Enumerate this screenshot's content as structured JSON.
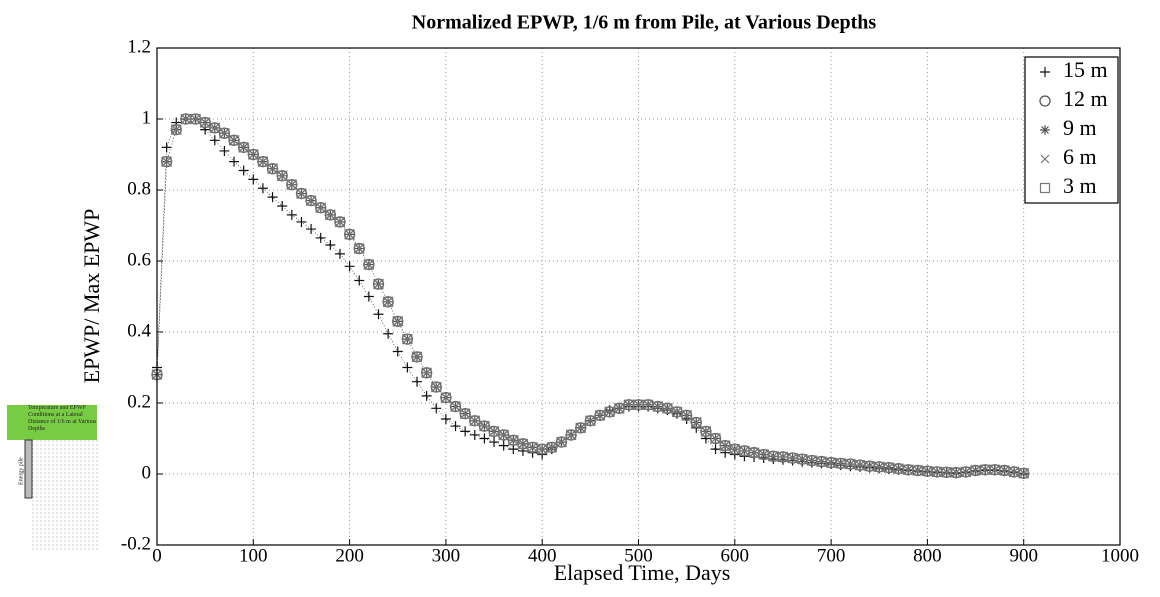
{
  "chart_data": {
    "type": "scatter",
    "title": "Normalized EPWP, 1/6 m from Pile, at Various Depths",
    "x_label": "Elapsed Time, Days",
    "y_label": "EPWP/ Max EPWP",
    "xlim": [
      0,
      1000
    ],
    "xticks": [
      0,
      100,
      200,
      300,
      400,
      500,
      600,
      700,
      800,
      900,
      1000
    ],
    "ylim": [
      -0.2,
      1.2
    ],
    "yticks": [
      -0.2,
      0,
      0.2,
      0.4,
      0.6,
      0.8,
      1,
      1.2
    ],
    "grid": true,
    "legend": "upper right",
    "x": [
      0,
      10,
      20,
      30,
      40,
      50,
      60,
      70,
      80,
      90,
      100,
      110,
      120,
      130,
      140,
      150,
      160,
      170,
      180,
      190,
      200,
      210,
      220,
      230,
      240,
      250,
      260,
      270,
      280,
      290,
      300,
      310,
      320,
      330,
      340,
      350,
      360,
      370,
      380,
      390,
      400,
      410,
      420,
      430,
      440,
      450,
      460,
      470,
      480,
      490,
      500,
      510,
      520,
      530,
      540,
      550,
      560,
      570,
      580,
      590,
      600,
      610,
      620,
      630,
      640,
      650,
      660,
      670,
      680,
      690,
      700,
      710,
      720,
      730,
      740,
      750,
      760,
      770,
      780,
      790,
      800,
      810,
      820,
      830,
      840,
      850,
      860,
      870,
      880,
      890,
      900
    ],
    "series": [
      {
        "name": "15 m",
        "color": "#111111",
        "marker": "plus",
        "values": [
          0.3,
          0.92,
          0.99,
          1.0,
          1.0,
          0.97,
          0.94,
          0.91,
          0.88,
          0.855,
          0.83,
          0.805,
          0.78,
          0.755,
          0.73,
          0.71,
          0.69,
          0.665,
          0.645,
          0.62,
          0.585,
          0.545,
          0.5,
          0.45,
          0.395,
          0.345,
          0.3,
          0.26,
          0.22,
          0.185,
          0.155,
          0.135,
          0.12,
          0.11,
          0.1,
          0.09,
          0.08,
          0.07,
          0.065,
          0.06,
          0.055,
          0.07,
          0.09,
          0.11,
          0.13,
          0.15,
          0.165,
          0.18,
          0.185,
          0.19,
          0.19,
          0.19,
          0.185,
          0.18,
          0.17,
          0.155,
          0.13,
          0.1,
          0.07,
          0.06,
          0.055,
          0.05,
          0.048,
          0.045,
          0.042,
          0.04,
          0.038,
          0.035,
          0.032,
          0.03,
          0.028,
          0.025,
          0.022,
          0.02,
          0.018,
          0.016,
          0.014,
          0.012,
          0.01,
          0.008,
          0.006,
          0.004,
          0.003,
          0.002,
          0.004,
          0.008,
          0.01,
          0.01,
          0.008,
          0.004,
          0.0
        ]
      },
      {
        "name": "12 m",
        "color": "#555555",
        "marker": "circle",
        "values": [
          0.28,
          0.88,
          0.97,
          1.0,
          1.0,
          0.99,
          0.975,
          0.96,
          0.94,
          0.92,
          0.9,
          0.88,
          0.86,
          0.84,
          0.815,
          0.79,
          0.77,
          0.75,
          0.73,
          0.71,
          0.675,
          0.635,
          0.59,
          0.535,
          0.485,
          0.43,
          0.38,
          0.33,
          0.285,
          0.245,
          0.215,
          0.19,
          0.17,
          0.15,
          0.135,
          0.12,
          0.11,
          0.095,
          0.085,
          0.075,
          0.07,
          0.075,
          0.09,
          0.11,
          0.13,
          0.15,
          0.165,
          0.175,
          0.185,
          0.195,
          0.195,
          0.195,
          0.19,
          0.185,
          0.175,
          0.165,
          0.145,
          0.12,
          0.1,
          0.08,
          0.07,
          0.065,
          0.06,
          0.055,
          0.05,
          0.048,
          0.045,
          0.042,
          0.038,
          0.035,
          0.032,
          0.03,
          0.028,
          0.025,
          0.022,
          0.02,
          0.018,
          0.015,
          0.012,
          0.01,
          0.008,
          0.006,
          0.005,
          0.004,
          0.006,
          0.01,
          0.012,
          0.012,
          0.01,
          0.006,
          0.002
        ]
      },
      {
        "name": "9 m",
        "color": "#555555",
        "marker": "asterisk",
        "values": [
          0.28,
          0.88,
          0.97,
          1.0,
          1.0,
          0.99,
          0.975,
          0.96,
          0.94,
          0.92,
          0.9,
          0.88,
          0.86,
          0.84,
          0.815,
          0.79,
          0.77,
          0.75,
          0.73,
          0.71,
          0.675,
          0.635,
          0.59,
          0.535,
          0.485,
          0.43,
          0.38,
          0.33,
          0.285,
          0.245,
          0.215,
          0.19,
          0.17,
          0.15,
          0.135,
          0.12,
          0.11,
          0.095,
          0.085,
          0.075,
          0.07,
          0.075,
          0.09,
          0.11,
          0.13,
          0.15,
          0.165,
          0.175,
          0.185,
          0.195,
          0.195,
          0.195,
          0.19,
          0.185,
          0.175,
          0.165,
          0.145,
          0.12,
          0.1,
          0.08,
          0.07,
          0.065,
          0.06,
          0.055,
          0.05,
          0.048,
          0.045,
          0.042,
          0.038,
          0.035,
          0.032,
          0.03,
          0.028,
          0.025,
          0.022,
          0.02,
          0.018,
          0.015,
          0.012,
          0.01,
          0.008,
          0.006,
          0.005,
          0.004,
          0.006,
          0.01,
          0.012,
          0.012,
          0.01,
          0.006,
          0.002
        ]
      },
      {
        "name": "6 m",
        "color": "#777777",
        "marker": "cross",
        "values": [
          0.28,
          0.88,
          0.97,
          1.0,
          1.0,
          0.99,
          0.975,
          0.96,
          0.94,
          0.92,
          0.9,
          0.88,
          0.86,
          0.84,
          0.815,
          0.79,
          0.77,
          0.75,
          0.73,
          0.71,
          0.675,
          0.635,
          0.59,
          0.535,
          0.485,
          0.43,
          0.38,
          0.33,
          0.285,
          0.245,
          0.215,
          0.19,
          0.17,
          0.15,
          0.135,
          0.12,
          0.11,
          0.095,
          0.085,
          0.075,
          0.07,
          0.075,
          0.09,
          0.11,
          0.13,
          0.15,
          0.165,
          0.175,
          0.185,
          0.195,
          0.195,
          0.195,
          0.19,
          0.185,
          0.175,
          0.165,
          0.145,
          0.12,
          0.1,
          0.08,
          0.07,
          0.065,
          0.06,
          0.055,
          0.05,
          0.048,
          0.045,
          0.042,
          0.038,
          0.035,
          0.032,
          0.03,
          0.028,
          0.025,
          0.022,
          0.02,
          0.018,
          0.015,
          0.012,
          0.01,
          0.008,
          0.006,
          0.005,
          0.004,
          0.006,
          0.01,
          0.012,
          0.012,
          0.01,
          0.006,
          0.002
        ]
      },
      {
        "name": "3 m",
        "color": "#777777",
        "marker": "square",
        "values": [
          0.28,
          0.88,
          0.97,
          1.0,
          1.0,
          0.99,
          0.975,
          0.96,
          0.94,
          0.92,
          0.9,
          0.88,
          0.86,
          0.84,
          0.815,
          0.79,
          0.77,
          0.75,
          0.73,
          0.71,
          0.675,
          0.635,
          0.59,
          0.535,
          0.485,
          0.43,
          0.38,
          0.33,
          0.285,
          0.245,
          0.215,
          0.19,
          0.17,
          0.15,
          0.135,
          0.12,
          0.11,
          0.095,
          0.085,
          0.075,
          0.07,
          0.075,
          0.09,
          0.11,
          0.13,
          0.15,
          0.165,
          0.175,
          0.185,
          0.195,
          0.195,
          0.195,
          0.19,
          0.185,
          0.175,
          0.165,
          0.145,
          0.12,
          0.1,
          0.08,
          0.07,
          0.065,
          0.06,
          0.055,
          0.05,
          0.048,
          0.045,
          0.042,
          0.038,
          0.035,
          0.032,
          0.03,
          0.028,
          0.025,
          0.022,
          0.02,
          0.018,
          0.015,
          0.012,
          0.01,
          0.008,
          0.006,
          0.005,
          0.004,
          0.006,
          0.01,
          0.012,
          0.012,
          0.01,
          0.006,
          0.002
        ]
      }
    ]
  },
  "inset": {
    "caption": "Temperature and EPWP Conditions at a Lateral Distance of 1/6 m at Various Depths",
    "pile_label": "Energy pile"
  }
}
